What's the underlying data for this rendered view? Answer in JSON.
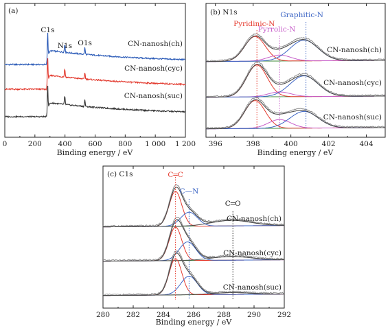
{
  "colors": {
    "ch": "#2a5ab7",
    "cyc": "#e2362a",
    "suc": "#333333",
    "envelope": "#4a4a4a",
    "fit_red": "#e53a2e",
    "fit_blue": "#3b64c4",
    "fit_magenta": "#c75dc9",
    "baseline_green": "#3f8a3a",
    "pyridinic": "#e53a2e",
    "pyrrolic": "#c75dc9",
    "graphitic": "#3b64c4",
    "c_eq_c": "#e53a2e",
    "c_n": "#3b64c4",
    "c_eq_o": "#222222"
  },
  "chart_data": [
    {
      "id": "a",
      "type": "line",
      "panel_label": "(a)",
      "xlabel": "Binding energy / eV",
      "xlim": [
        0,
        1200
      ],
      "xticks": [
        0,
        200,
        400,
        600,
        800,
        1000,
        1200
      ],
      "xtick_labels": [
        "0",
        "200",
        "400",
        "600",
        "800",
        "1 000",
        "1 200"
      ],
      "series": [
        {
          "name": "CN-nanosh(ch)",
          "key": "ch",
          "offset": 2.0
        },
        {
          "name": "CN-nanosh(cyc)",
          "key": "cyc",
          "offset": 1.0
        },
        {
          "name": "CN-nanosh(suc)",
          "key": "suc",
          "offset": 0.0
        }
      ],
      "peaks": [
        {
          "label": "C1s",
          "x": 284.6
        },
        {
          "label": "N1s",
          "x": 398.5
        },
        {
          "label": "O1s",
          "x": 532
        }
      ]
    },
    {
      "id": "b",
      "type": "line",
      "panel_label": "(b) N1s",
      "xlabel": "Binding energy / eV",
      "xlim": [
        395.5,
        405
      ],
      "xticks": [
        396,
        398,
        400,
        402,
        404
      ],
      "xtick_labels": [
        "396",
        "398",
        "400",
        "402",
        "404"
      ],
      "annotations": [
        {
          "label": "Pyridinic-N",
          "x": 398.2,
          "color_key": "pyridinic"
        },
        {
          "label": "Pyrrolic-N",
          "x": 399.4,
          "color_key": "pyrrolic"
        },
        {
          "label": "Graphitic-N",
          "x": 400.8,
          "color_key": "graphitic"
        }
      ],
      "series": [
        {
          "name": "CN-nanosh(ch)",
          "offset": 2.0,
          "components": [
            {
              "center": 398.1,
              "height": 0.62
            },
            {
              "center": 399.4,
              "height": 0.15
            },
            {
              "center": 400.7,
              "height": 0.52
            }
          ]
        },
        {
          "name": "CN-nanosh(cyc)",
          "offset": 1.0,
          "components": [
            {
              "center": 398.2,
              "height": 0.8
            },
            {
              "center": 399.4,
              "height": 0.12
            },
            {
              "center": 400.7,
              "height": 0.52
            }
          ]
        },
        {
          "name": "CN-nanosh(suc)",
          "offset": 0.0,
          "components": [
            {
              "center": 398.1,
              "height": 0.7
            },
            {
              "center": 399.4,
              "height": 0.22
            },
            {
              "center": 400.7,
              "height": 0.42
            }
          ]
        }
      ]
    },
    {
      "id": "c",
      "type": "line",
      "panel_label": "(c) C1s",
      "xlabel": "Binding energy / eV",
      "xlim": [
        280,
        292
      ],
      "xticks": [
        280,
        282,
        284,
        286,
        288,
        290,
        292
      ],
      "xtick_labels": [
        "280",
        "282",
        "284",
        "286",
        "288",
        "290",
        "292"
      ],
      "annotations": [
        {
          "label": "C═C",
          "x": 284.8,
          "color_key": "c_eq_c"
        },
        {
          "label": "C—N",
          "x": 285.7,
          "color_key": "c_n"
        },
        {
          "label": "C═O",
          "x": 288.6,
          "color_key": "c_eq_o"
        }
      ],
      "series": [
        {
          "name": "CN-nanosh(ch)",
          "offset": 2.0,
          "components": [
            {
              "center": 284.8,
              "height": 0.75
            },
            {
              "center": 285.7,
              "height": 0.3
            },
            {
              "center": 288.5,
              "height": 0.12
            }
          ]
        },
        {
          "name": "CN-nanosh(cyc)",
          "offset": 1.0,
          "components": [
            {
              "center": 284.8,
              "height": 0.72
            },
            {
              "center": 285.6,
              "height": 0.4
            },
            {
              "center": 288.5,
              "height": 0.08
            }
          ]
        },
        {
          "name": "CN-nanosh(suc)",
          "offset": 0.0,
          "components": [
            {
              "center": 284.8,
              "height": 0.78
            },
            {
              "center": 285.7,
              "height": 0.4
            },
            {
              "center": 288.5,
              "height": 0.04
            }
          ]
        }
      ]
    }
  ]
}
